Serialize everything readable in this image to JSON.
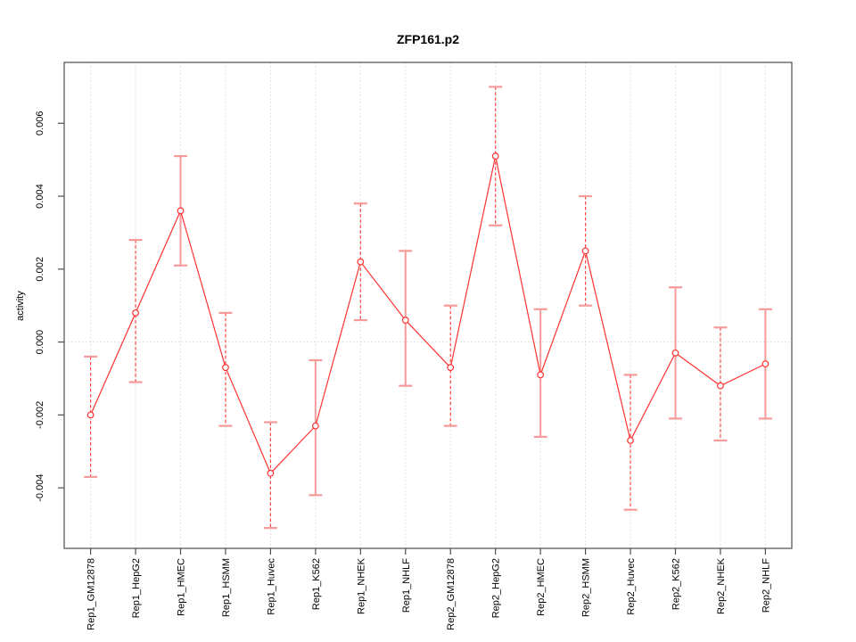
{
  "figure": {
    "title": "ZFP161.p2"
  },
  "chart_data": {
    "type": "line",
    "title": "ZFP161.p2",
    "xlabel": "",
    "ylabel": "activity",
    "legend": "none",
    "grid": "vertical dotted line at each category; horizontal dotted line at y=0",
    "categories": [
      "Rep1_GM12878",
      "Rep1_HepG2",
      "Rep1_HMEC",
      "Rep1_HSMM",
      "Rep1_Huvec",
      "Rep1_K562",
      "Rep1_NHEK",
      "Rep1_NHLF",
      "Rep2_GM12878",
      "Rep2_HepG2",
      "Rep2_HMEC",
      "Rep2_HSMM",
      "Rep2_Huvec",
      "Rep2_K562",
      "Rep2_NHEK",
      "Rep2_NHLF"
    ],
    "series": [
      {
        "name": "activity",
        "marker": "open-circle",
        "values": [
          -0.002,
          0.0008,
          0.0036,
          -0.0007,
          -0.0036,
          -0.0023,
          0.0022,
          0.0006,
          -0.0007,
          0.0051,
          -0.0009,
          0.0025,
          -0.0027,
          -0.0003,
          -0.0012,
          -0.0006
        ],
        "ci_low": [
          -0.0037,
          -0.0011,
          0.0021,
          -0.0023,
          -0.0051,
          -0.0042,
          0.0006,
          -0.0012,
          -0.0023,
          0.0032,
          -0.0026,
          0.001,
          -0.0046,
          -0.0021,
          -0.0027,
          -0.0021
        ],
        "ci_high": [
          -0.0004,
          0.0028,
          0.0051,
          0.0008,
          -0.0022,
          -0.0005,
          0.0038,
          0.0025,
          0.001,
          0.007,
          0.0009,
          0.004,
          -0.0009,
          0.0015,
          0.0004,
          0.0009
        ],
        "error_bar_line_style": [
          "dashed",
          "dashed",
          "solid",
          "dashed",
          "dashed",
          "solid",
          "dashed",
          "solid",
          "dashed",
          "dashed",
          "solid",
          "dashed",
          "dashed",
          "solid",
          "dashed",
          "solid"
        ]
      }
    ],
    "ylim": [
      -0.00566,
      0.00767
    ],
    "yticks": [
      -0.004,
      -0.002,
      0,
      0.002,
      0.004,
      0.006
    ],
    "ytick_labels": [
      "-0.004",
      "-0.002",
      "0.000",
      "0.002",
      "0.004",
      "0.006"
    ],
    "colors": {
      "series_line": "#ff3232",
      "marker_stroke": "#ff3232",
      "error_bar_solid": "#f79a9a",
      "error_bar_dashed": "#ff4444",
      "error_bar_cap": "#f79a9a",
      "gridline": "#d9d9d9",
      "zero_line": "#d9d9d9",
      "frame": "#4d4d4d",
      "text": "#000000"
    }
  }
}
